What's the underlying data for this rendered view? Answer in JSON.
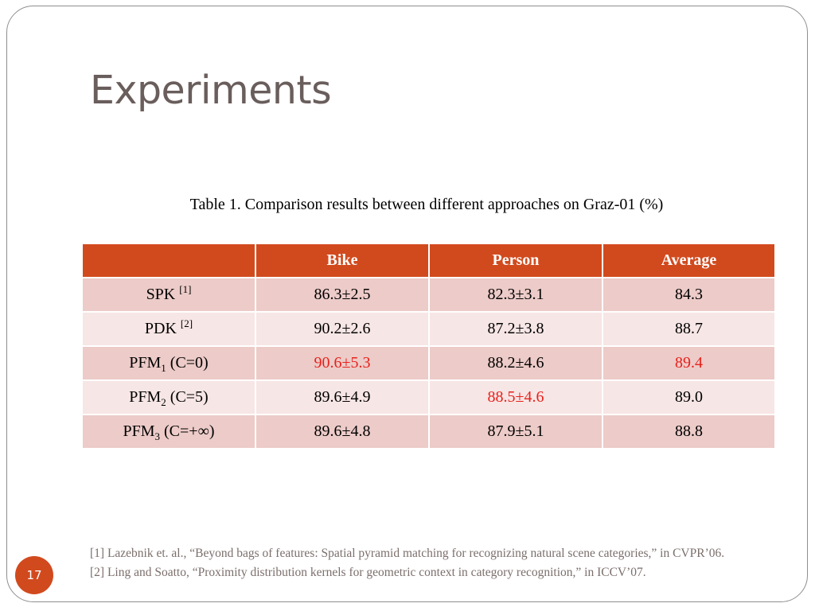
{
  "slide": {
    "title": "Experiments",
    "number": "17"
  },
  "table": {
    "caption": "Table 1. Comparison results between different approaches on Graz-01 (%)",
    "headers": [
      "",
      "Bike",
      "Person",
      "Average"
    ],
    "rows": [
      {
        "method": "SPK",
        "method_sup": "[1]",
        "method_sub": "",
        "method_suffix": "",
        "bike": "86.3±2.5",
        "person": "82.3±3.1",
        "average": "84.3"
      },
      {
        "method": "PDK",
        "method_sup": "[2]",
        "method_sub": "",
        "method_suffix": "",
        "bike": "90.2±2.6",
        "person": "87.2±3.8",
        "average": "88.7"
      },
      {
        "method": "PFM",
        "method_sup": "",
        "method_sub": "1",
        "method_suffix": "(C=0)",
        "bike": "90.6±5.3",
        "person": "88.2±4.6",
        "average": "89.4"
      },
      {
        "method": "PFM",
        "method_sup": "",
        "method_sub": "2",
        "method_suffix": "(C=5)",
        "bike": "89.6±4.9",
        "person": "88.5±4.6",
        "average": "89.0"
      },
      {
        "method": "PFM",
        "method_sup": "",
        "method_sub": "3",
        "method_suffix": "(C=+∞)",
        "bike": "89.6±4.8",
        "person": "87.9±5.1",
        "average": "88.8"
      }
    ],
    "colors": {
      "header_bg": "#d14a1e",
      "row_dark": "#eccbc8",
      "row_light": "#f6e6e5",
      "highlight": "#e8211b"
    }
  },
  "references": [
    "[1] Lazebnik et. al., “Beyond bags of features: Spatial pyramid matching for recognizing natural scene categories,” in CVPR’06.",
    "[2] Ling and Soatto, “Proximity distribution kernels for geometric context in category recognition,” in ICCV’07."
  ]
}
